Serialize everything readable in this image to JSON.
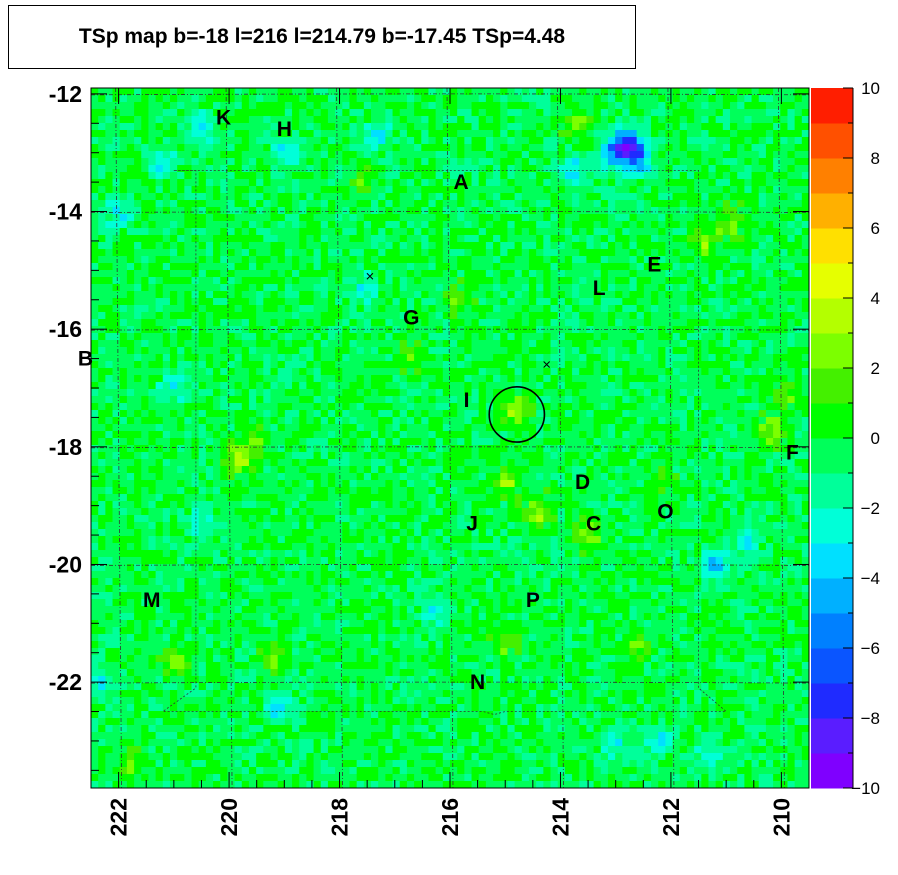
{
  "title": "TSp map b=-18 l=216 l=214.79 b=-17.45 TSp=4.48",
  "chart_data": {
    "type": "heatmap",
    "title": "TSp map b=-18 l=216 l=214.79 b=-17.45 TSp=4.48",
    "xlabel": "",
    "ylabel": "",
    "xlim": [
      222.5,
      209.5
    ],
    "ylim": [
      -23.8,
      -11.9
    ],
    "x_axis_reversed": true,
    "x_ticks": [
      "222",
      "220",
      "218",
      "216",
      "214",
      "212",
      "210"
    ],
    "y_ticks": [
      "-12",
      "-14",
      "-16",
      "-18",
      "-20",
      "-22"
    ],
    "colorbar": {
      "min": -10,
      "max": 10,
      "ticks": [
        "10",
        "8",
        "6",
        "4",
        "2",
        "0",
        "−2",
        "−4",
        "−6",
        "−8",
        "−10"
      ],
      "colors": [
        "#7f00ff",
        "#5a1dff",
        "#1f2bff",
        "#0a55ff",
        "#0080ff",
        "#00b0ff",
        "#00e0ff",
        "#00ffd8",
        "#00ff9a",
        "#00ff5a",
        "#00ff00",
        "#44f000",
        "#7cff00",
        "#b4ff00",
        "#e6ff00",
        "#ffe000",
        "#ffb000",
        "#ff8000",
        "#ff5000",
        "#ff1e00"
      ]
    },
    "background_level": -0.3,
    "hotspots": [
      {
        "l": 214.8,
        "b": -17.4,
        "value": 3.5
      },
      {
        "l": 215.0,
        "b": -18.6,
        "value": 3.0
      },
      {
        "l": 214.4,
        "b": -19.1,
        "value": 3.2
      },
      {
        "l": 213.5,
        "b": -19.5,
        "value": 2.8
      },
      {
        "l": 219.8,
        "b": -18.2,
        "value": 3.6
      },
      {
        "l": 219.5,
        "b": -17.9,
        "value": 2.5
      },
      {
        "l": 221.0,
        "b": -21.6,
        "value": 2.5
      },
      {
        "l": 219.2,
        "b": -21.6,
        "value": 2.2
      },
      {
        "l": 215.8,
        "b": -15.5,
        "value": 2.2
      },
      {
        "l": 216.7,
        "b": -16.5,
        "value": 2.0
      },
      {
        "l": 213.7,
        "b": -12.5,
        "value": 2.5
      },
      {
        "l": 210.9,
        "b": -14.2,
        "value": 2.6
      },
      {
        "l": 211.4,
        "b": -14.5,
        "value": 2.6
      },
      {
        "l": 210.2,
        "b": -17.7,
        "value": 2.5
      },
      {
        "l": 209.9,
        "b": -17.1,
        "value": 2.0
      },
      {
        "l": 212.2,
        "b": -18.6,
        "value": 1.8
      },
      {
        "l": 215.0,
        "b": -21.3,
        "value": 2.2
      },
      {
        "l": 212.6,
        "b": -21.4,
        "value": 2.0
      },
      {
        "l": 217.6,
        "b": -13.5,
        "value": 1.8
      },
      {
        "l": 221.8,
        "b": -23.4,
        "value": 1.8
      }
    ],
    "coldspots": [
      {
        "l": 212.8,
        "b": -12.8,
        "value": -5.0
      },
      {
        "l": 212.6,
        "b": -13.1,
        "value": -5.5
      },
      {
        "l": 213.0,
        "b": -13.0,
        "value": -4.8
      },
      {
        "l": 220.5,
        "b": -12.6,
        "value": -3.2
      },
      {
        "l": 219.0,
        "b": -13.0,
        "value": -3.0
      },
      {
        "l": 217.3,
        "b": -12.7,
        "value": -2.8
      },
      {
        "l": 221.2,
        "b": -13.2,
        "value": -2.8
      },
      {
        "l": 222.0,
        "b": -14.0,
        "value": -3.0
      },
      {
        "l": 213.8,
        "b": -13.3,
        "value": -3.2
      },
      {
        "l": 221.0,
        "b": -17.0,
        "value": -2.5
      },
      {
        "l": 220.5,
        "b": -19.3,
        "value": -2.4
      },
      {
        "l": 211.2,
        "b": -20.0,
        "value": -3.6
      },
      {
        "l": 219.1,
        "b": -22.4,
        "value": -3.2
      },
      {
        "l": 216.3,
        "b": -20.8,
        "value": -2.5
      },
      {
        "l": 211.3,
        "b": -23.2,
        "value": -2.4
      },
      {
        "l": 212.2,
        "b": -23.0,
        "value": -2.5
      },
      {
        "l": 213.0,
        "b": -23.1,
        "value": -2.4
      },
      {
        "l": 222.3,
        "b": -22.0,
        "value": -2.2
      },
      {
        "l": 217.5,
        "b": -15.3,
        "value": -2.3
      },
      {
        "l": 210.6,
        "b": -19.6,
        "value": -2.2
      }
    ],
    "source_circle": {
      "l": 214.79,
      "b": -17.45,
      "radius_deg": 0.5
    },
    "crosses": [
      {
        "l": 217.45,
        "b": -15.1
      },
      {
        "l": 214.25,
        "b": -16.6
      }
    ],
    "labels": [
      {
        "text": "K",
        "l": 220.1,
        "b": -12.4
      },
      {
        "text": "H",
        "l": 219.0,
        "b": -12.6
      },
      {
        "text": "A",
        "l": 215.8,
        "b": -13.5
      },
      {
        "text": "E",
        "l": 212.3,
        "b": -14.9
      },
      {
        "text": "L",
        "l": 213.3,
        "b": -15.3
      },
      {
        "text": "G",
        "l": 216.7,
        "b": -15.8
      },
      {
        "text": "B",
        "l": 222.6,
        "b": -16.5
      },
      {
        "text": "I",
        "l": 215.7,
        "b": -17.2
      },
      {
        "text": "F",
        "l": 209.8,
        "b": -18.1
      },
      {
        "text": "D",
        "l": 213.6,
        "b": -18.6
      },
      {
        "text": "J",
        "l": 215.6,
        "b": -19.3
      },
      {
        "text": "C",
        "l": 213.4,
        "b": -19.3
      },
      {
        "text": "O",
        "l": 212.1,
        "b": -19.1
      },
      {
        "text": "M",
        "l": 221.4,
        "b": -20.6
      },
      {
        "text": "P",
        "l": 214.5,
        "b": -20.6
      },
      {
        "text": "N",
        "l": 215.5,
        "b": -22.0
      }
    ],
    "grid": {
      "b_lines": [
        -12,
        -14,
        -16,
        -18,
        -20,
        -22
      ],
      "l_lines": [
        222,
        220,
        218,
        216,
        214,
        212,
        210
      ]
    },
    "region_box": [
      [
        221.0,
        -13.3
      ],
      [
        211.5,
        -13.3
      ],
      [
        211.5,
        -22.1
      ],
      [
        211.0,
        -22.5
      ],
      [
        215.0,
        -22.5
      ],
      [
        215.2,
        -22.55
      ],
      [
        215.4,
        -22.5
      ],
      [
        221.2,
        -22.5
      ],
      [
        220.6,
        -22.1
      ],
      [
        220.6,
        -13.3
      ]
    ]
  }
}
